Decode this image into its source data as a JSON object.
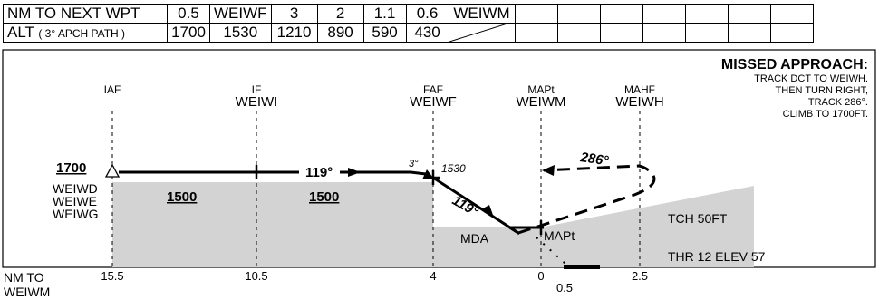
{
  "table": {
    "row1": {
      "label": "NM TO NEXT WPT",
      "cells": [
        "0.5",
        "WEIWF",
        "3",
        "2",
        "1.1",
        "0.6",
        "WEIWM"
      ]
    },
    "row2": {
      "label_main": "ALT",
      "label_sub": "( 3° APCH PATH )",
      "cells": [
        "1700",
        "1530",
        "1210",
        "890",
        "590",
        "430"
      ]
    }
  },
  "missed_approach": {
    "title": "MISSED APPROACH:",
    "lines": [
      "TRACK DCT TO WEIWH.",
      "THEN TURN RIGHT,",
      "TRACK 286°.",
      "CLIMB TO 1700FT."
    ]
  },
  "fixes": {
    "iaf": {
      "role": "IAF",
      "name": ""
    },
    "if": {
      "role": "IF",
      "name": "WEIWI"
    },
    "faf": {
      "role": "FAF",
      "name": "WEIWF"
    },
    "mapt": {
      "role": "MAPt",
      "name": "WEIWM"
    },
    "mahf": {
      "role": "MAHF",
      "name": "WEIWH"
    }
  },
  "profile": {
    "iaf_altitude": "1700",
    "sector_altitudes": [
      "1500",
      "1500"
    ],
    "holding_names": [
      "WEIWD",
      "WEIWE",
      "WEIWG"
    ],
    "track_inbound": "119°",
    "track_final": "119°",
    "track_missed": "286°",
    "glide_angle": "3°",
    "faf_altitude": "1530",
    "mda_label": "MDA",
    "mapt_label": "MAPt",
    "tch": "TCH 50FT",
    "threshold": "THR 12 ELEV 57"
  },
  "axis": {
    "title_line1": "NM TO",
    "title_line2": "WEIWM",
    "ticks": [
      "15.5",
      "10.5",
      "4",
      "0",
      "0.5",
      "2.5"
    ]
  }
}
